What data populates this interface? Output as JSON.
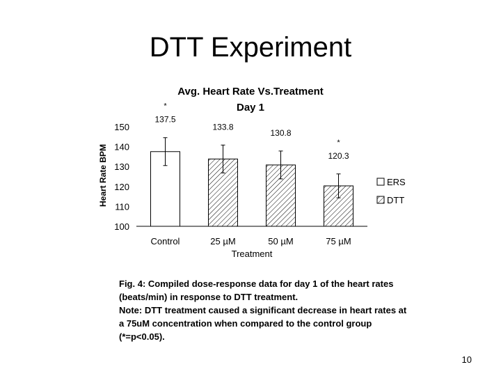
{
  "slide": {
    "title": "DTT Experiment",
    "number": "10"
  },
  "chart_data": {
    "type": "bar",
    "title": "Avg. Heart Rate Vs.Treatment",
    "subtitle": "Day 1",
    "xlabel": "Treatment",
    "ylabel": "Heart Rate BPM",
    "ylim": [
      100,
      150
    ],
    "yticks": [
      "100",
      "110",
      "120",
      "130",
      "140",
      "150"
    ],
    "categories": [
      "Control",
      "25 µM",
      "50 µM",
      "75 µM"
    ],
    "values": [
      137.5,
      133.8,
      130.8,
      120.3
    ],
    "value_labels": [
      "137.5",
      "133.8",
      "130.8",
      "120.3"
    ],
    "error": [
      7,
      7,
      7,
      6
    ],
    "series_type": [
      "ERS",
      "DTT",
      "DTT",
      "DTT"
    ],
    "significance": [
      "*",
      "",
      "",
      "*"
    ],
    "legend": [
      {
        "name": "ERS",
        "fill": "white"
      },
      {
        "name": "DTT",
        "fill": "hatched"
      }
    ],
    "legend_position": "right",
    "grid": false
  },
  "caption": {
    "line1": "Fig. 4: Compiled dose-response data for day 1 of the heart rates (beats/min) in response to DTT treatment.",
    "line2": "Note: DTT treatment caused a significant decrease in heart rates at a 75uM concentration when compared to the control group (*=p<0.05)."
  },
  "colors": {
    "bar_stroke": "#000000",
    "error_bar": "#000000",
    "axis": "#000000"
  }
}
